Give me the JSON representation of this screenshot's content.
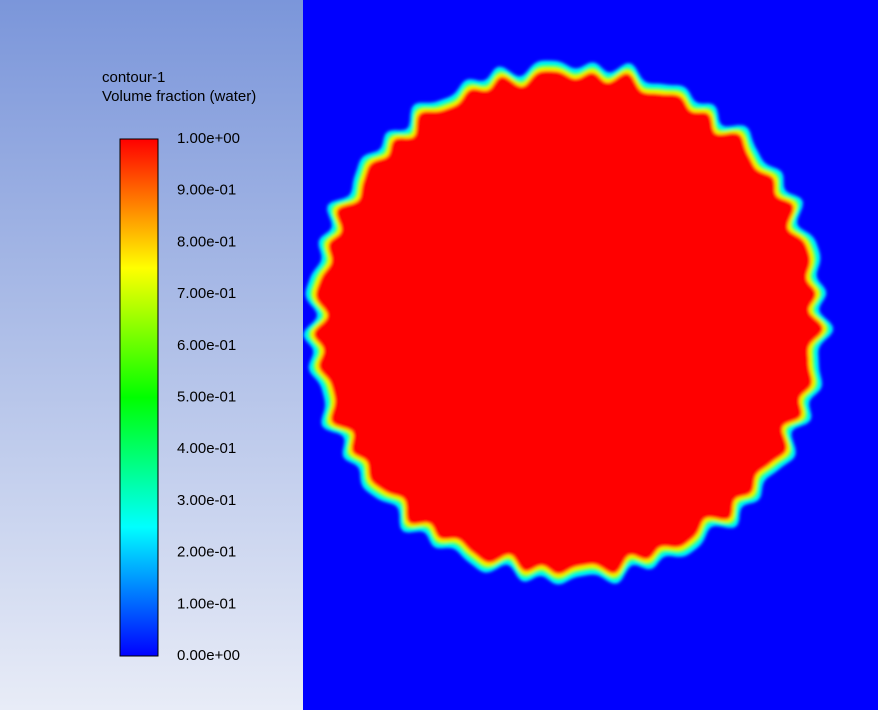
{
  "chart_data": {
    "type": "contour",
    "title": "contour-1",
    "subtitle": "Volume fraction (water)",
    "clim": [
      0,
      1
    ],
    "colormap": [
      "#0000ff",
      "#00ffff",
      "#00ff00",
      "#ffff00",
      "#ff0000"
    ],
    "background": "#0000ff",
    "cticks": [
      {
        "value": 1,
        "label": "1.00e+00"
      },
      {
        "value": 0.9,
        "label": "9.00e-01"
      },
      {
        "value": 0.8,
        "label": "8.00e-01"
      },
      {
        "value": 0.7,
        "label": "7.00e-01"
      },
      {
        "value": 0.6,
        "label": "6.00e-01"
      },
      {
        "value": 0.5,
        "label": "5.00e-01"
      },
      {
        "value": 0.4,
        "label": "4.00e-01"
      },
      {
        "value": 0.3,
        "label": "3.00e-01"
      },
      {
        "value": 0.2,
        "label": "2.00e-01"
      },
      {
        "value": 0.1,
        "label": "1.00e-01"
      },
      {
        "value": 0,
        "label": "0.00e+00"
      }
    ]
  }
}
